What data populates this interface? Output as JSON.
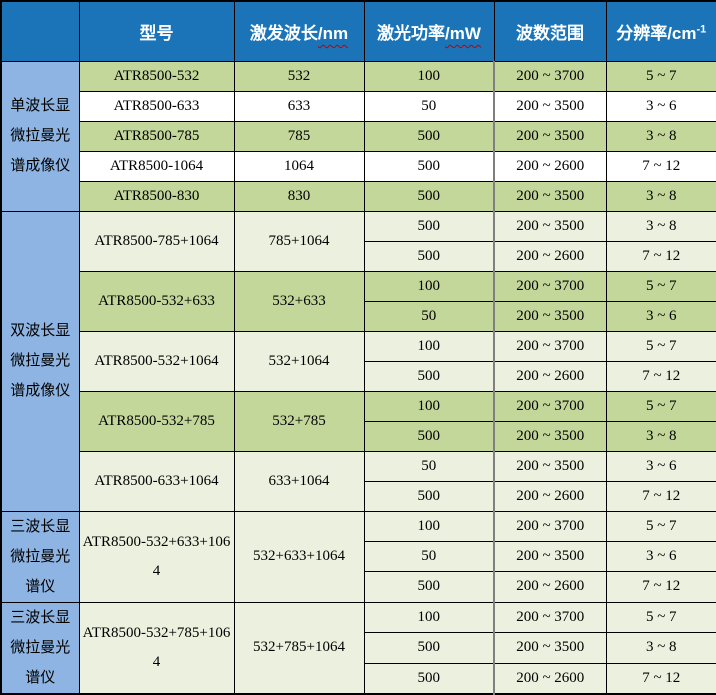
{
  "table": {
    "columns": [
      {
        "key": "category",
        "label": ""
      },
      {
        "key": "model",
        "label": "型号"
      },
      {
        "key": "wavelength",
        "label": "激发波长",
        "unit": "/nm",
        "wavy": true
      },
      {
        "key": "power",
        "label": "激光功率",
        "unit": "/mW",
        "wavy": true
      },
      {
        "key": "range",
        "label": "波数范围"
      },
      {
        "key": "resolution",
        "label": "分辨率",
        "unit": "/cm",
        "sup": "-1"
      }
    ],
    "groups": [
      {
        "label": "单波长显微拉曼光谱成像仪",
        "models": [
          {
            "model": "ATR8500-532",
            "wavelength": "532",
            "shade": "green",
            "rows": [
              [
                "100",
                "200 ~ 3700",
                "5 ~ 7"
              ]
            ]
          },
          {
            "model": "ATR8500-633",
            "wavelength": "633",
            "shade": "white",
            "rows": [
              [
                "50",
                "200 ~ 3500",
                "3 ~ 6"
              ]
            ]
          },
          {
            "model": "ATR8500-785",
            "wavelength": "785",
            "shade": "green",
            "rows": [
              [
                "500",
                "200 ~ 3500",
                "3 ~ 8"
              ]
            ]
          },
          {
            "model": "ATR8500-1064",
            "wavelength": "1064",
            "shade": "white",
            "rows": [
              [
                "500",
                "200 ~ 2600",
                "7 ~ 12"
              ]
            ]
          },
          {
            "model": "ATR8500-830",
            "wavelength": "830",
            "shade": "green",
            "rows": [
              [
                "500",
                "200 ~ 3500",
                "3 ~ 8"
              ]
            ]
          }
        ]
      },
      {
        "label": "双波长显微拉曼光谱成像仪",
        "models": [
          {
            "model": "ATR8500-785+1064",
            "wavelength": "785+1064",
            "shade": "pale",
            "rows": [
              [
                "500",
                "200 ~ 3500",
                "3 ~ 8"
              ],
              [
                "500",
                "200 ~ 2600",
                "7 ~ 12"
              ]
            ]
          },
          {
            "model": "ATR8500-532+633",
            "wavelength": "532+633",
            "shade": "green",
            "rows": [
              [
                "100",
                "200 ~ 3700",
                "5 ~ 7"
              ],
              [
                "50",
                "200 ~ 3500",
                "3 ~ 6"
              ]
            ]
          },
          {
            "model": "ATR8500-532+1064",
            "wavelength": "532+1064",
            "shade": "pale",
            "rows": [
              [
                "100",
                "200 ~ 3700",
                "5 ~ 7"
              ],
              [
                "500",
                "200 ~ 2600",
                "7 ~ 12"
              ]
            ]
          },
          {
            "model": "ATR8500-532+785",
            "wavelength": "532+785",
            "shade": "green",
            "rows": [
              [
                "100",
                "200 ~ 3700",
                "5 ~ 7"
              ],
              [
                "500",
                "200 ~ 3500",
                "3 ~ 8"
              ]
            ]
          },
          {
            "model": "ATR8500-633+1064",
            "wavelength": "633+1064",
            "shade": "pale",
            "rows": [
              [
                "50",
                "200 ~ 3500",
                "3 ~ 6"
              ],
              [
                "500",
                "200 ~ 2600",
                "7 ~ 12"
              ]
            ]
          }
        ]
      },
      {
        "label": "三波长显微拉曼光谱仪",
        "models": [
          {
            "model": "ATR8500-532+633+1064",
            "wavelength": "532+633+1064",
            "shade": "pale",
            "rows": [
              [
                "100",
                "200 ~ 3700",
                "5 ~ 7"
              ],
              [
                "50",
                "200 ~ 3500",
                "3 ~ 6"
              ],
              [
                "500",
                "200 ~ 2600",
                "7 ~ 12"
              ]
            ]
          }
        ]
      },
      {
        "label": "三波长显微拉曼光谱仪",
        "models": [
          {
            "model": "ATR8500-532+785+1064",
            "wavelength": "532+785+1064",
            "shade": "pale",
            "rows": [
              [
                "100",
                "200 ~ 3700",
                "5 ~ 7"
              ],
              [
                "500",
                "200 ~ 3500",
                "3 ~ 8"
              ],
              [
                "500",
                "200 ~ 2600",
                "7 ~ 12"
              ]
            ]
          }
        ]
      }
    ],
    "colors": {
      "header_bg": "#1b74b8",
      "category_bg": "#8db4e2",
      "row_green": "#c4d79b",
      "row_pale": "#ebf1de",
      "row_white": "#ffffff",
      "border_dark": "#000000",
      "border_gray": "#7f7f7f",
      "wavy_underline": "#c00000"
    }
  }
}
